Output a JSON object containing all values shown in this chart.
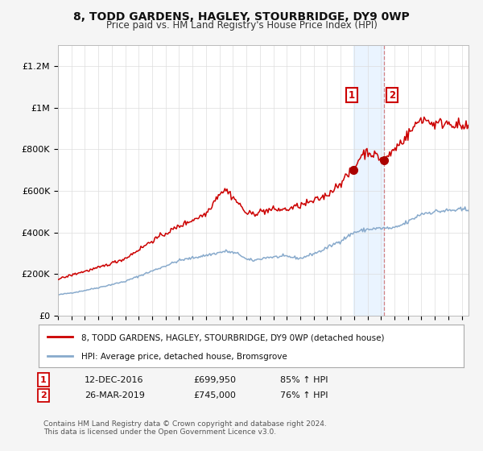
{
  "title": "8, TODD GARDENS, HAGLEY, STOURBRIDGE, DY9 0WP",
  "subtitle": "Price paid vs. HM Land Registry's House Price Index (HPI)",
  "ylim": [
    0,
    1300000
  ],
  "xlim_start": 1995.0,
  "xlim_end": 2025.5,
  "yticks": [
    0,
    200000,
    400000,
    600000,
    800000,
    1000000,
    1200000
  ],
  "ytick_labels": [
    "£0",
    "£200K",
    "£400K",
    "£600K",
    "£800K",
    "£1M",
    "£1.2M"
  ],
  "background_color": "#f5f5f5",
  "plot_bg_color": "#ffffff",
  "red_line_color": "#cc0000",
  "blue_line_color": "#88aacc",
  "transaction1_date": 2016.95,
  "transaction1_value": 699950,
  "transaction2_date": 2019.24,
  "transaction2_value": 745000,
  "legend_red_label": "8, TODD GARDENS, HAGLEY, STOURBRIDGE, DY9 0WP (detached house)",
  "legend_blue_label": "HPI: Average price, detached house, Bromsgrove",
  "annotation1_label": "1",
  "annotation2_label": "2",
  "copyright": "Contains HM Land Registry data © Crown copyright and database right 2024.\nThis data is licensed under the Open Government Licence v3.0."
}
